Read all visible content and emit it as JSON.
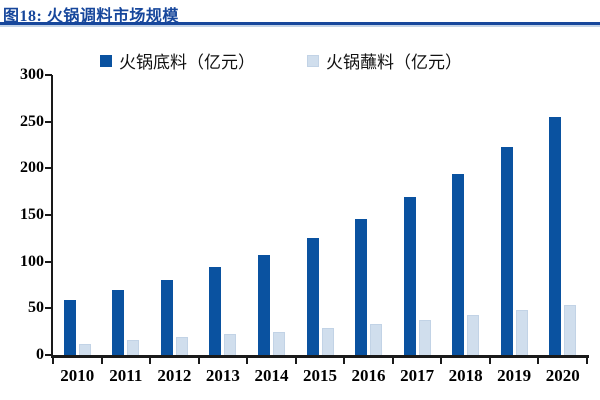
{
  "figure": {
    "title": "图18: 火锅调料市场规模"
  },
  "colors": {
    "title_blue": "#17479C",
    "rule_light": "#C3D4E8",
    "bar_dark": "#0A52A0",
    "bar_light": "#D0DEED",
    "bar_light_border": "#C2D3E6",
    "axis_black": "#1A1A1A"
  },
  "chart_data": {
    "type": "bar",
    "title": "火锅调料市场规模",
    "xlabel": "",
    "ylabel": "",
    "categories": [
      "2010",
      "2011",
      "2012",
      "2013",
      "2014",
      "2015",
      "2016",
      "2017",
      "2018",
      "2019",
      "2020"
    ],
    "series": [
      {
        "name": "火锅底料（亿元）",
        "color_key": "bar_dark",
        "values": [
          59,
          70,
          80,
          94,
          107,
          125,
          146,
          169,
          194,
          223,
          255
        ]
      },
      {
        "name": "火锅蘸料（亿元）",
        "color_key": "bar_light",
        "values": [
          12,
          16,
          19,
          22,
          25,
          29,
          33,
          38,
          43,
          48,
          54
        ]
      }
    ],
    "ylim": [
      0,
      300
    ],
    "yticks": [
      0,
      50,
      100,
      150,
      200,
      250,
      300
    ],
    "grid": false,
    "legend_position": "top"
  }
}
